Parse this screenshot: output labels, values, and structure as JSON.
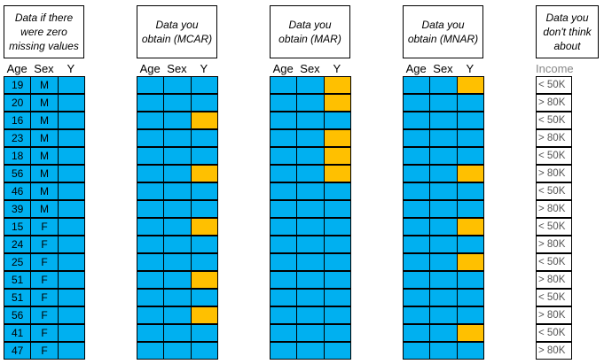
{
  "panels": [
    {
      "title": "Data if there were zero missing values",
      "columns": [
        "Age",
        "Sex",
        "Y"
      ]
    },
    {
      "title": "Data you obtain (MCAR)",
      "columns": [
        "Age",
        "Sex",
        "Y"
      ],
      "missing_y": [
        2,
        5,
        8,
        11,
        13
      ]
    },
    {
      "title": "Data you obtain (MAR)",
      "columns": [
        "Age",
        "Sex",
        "Y"
      ],
      "missing_y": [
        0,
        1,
        3,
        4,
        5
      ]
    },
    {
      "title": "Data you obtain (MNAR)",
      "columns": [
        "Age",
        "Sex",
        "Y"
      ],
      "missing_y": [
        0,
        5,
        8,
        10,
        14
      ]
    },
    {
      "title": "Data you don't think about",
      "columns": [
        "Income"
      ]
    }
  ],
  "rows": {
    "age": [
      19,
      20,
      16,
      23,
      18,
      56,
      46,
      39,
      15,
      24,
      25,
      51,
      51,
      56,
      41,
      47
    ],
    "sex": [
      "M",
      "M",
      "M",
      "M",
      "M",
      "M",
      "M",
      "M",
      "F",
      "F",
      "F",
      "F",
      "F",
      "F",
      "F",
      "F"
    ],
    "income": [
      "< 50K",
      "> 80K",
      "< 50K",
      "> 80K",
      "< 50K",
      "> 80K",
      "< 50K",
      "> 80K",
      "< 50K",
      "> 80K",
      "< 50K",
      "> 80K",
      "< 50K",
      "> 80K",
      "< 50K",
      "> 80K"
    ]
  }
}
